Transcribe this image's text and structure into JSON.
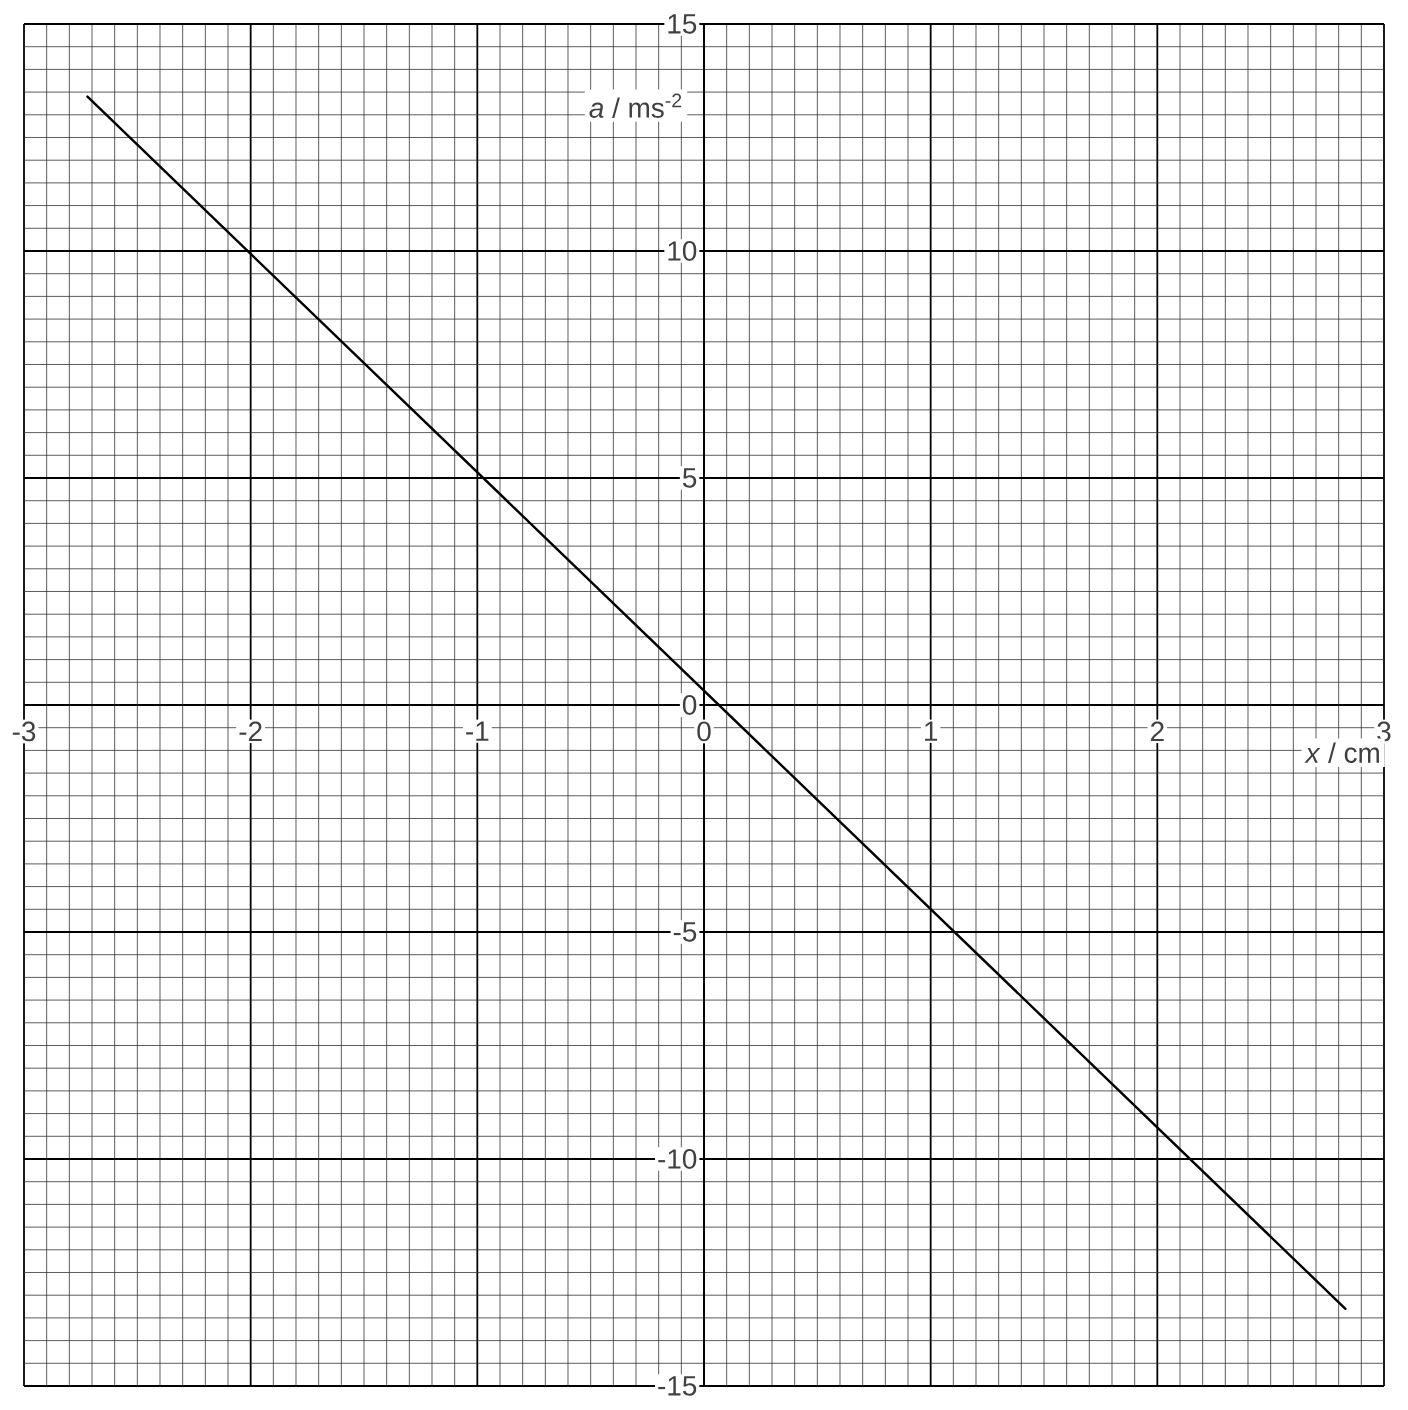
{
  "chart_data": {
    "type": "line",
    "xlabel": "*x* / cm",
    "ylabel": "*a* / ms$^{-2}$",
    "x": [
      -2.72,
      2.83
    ],
    "series": [
      {
        "color": "#000000",
        "values": [
          13.4,
          -13.3
        ]
      }
    ],
    "xlim": [
      -3,
      3
    ],
    "ylim": [
      -15,
      15
    ],
    "xticks": [
      -3,
      -2,
      -1,
      0,
      1,
      2,
      3
    ],
    "yticks": [
      -15,
      -10,
      -5,
      0,
      5,
      10,
      15
    ],
    "grid": true,
    "marker": "none",
    "line_style": "solid"
  }
}
